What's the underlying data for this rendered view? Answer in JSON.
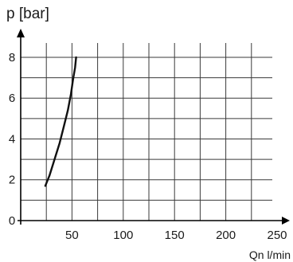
{
  "chart_data": {
    "type": "line",
    "title": "",
    "xlabel": "Qn l/min",
    "ylabel": "p [bar]",
    "xlim": [
      0,
      250
    ],
    "ylim": [
      0,
      8.7
    ],
    "x_ticks": [
      "50",
      "100",
      "150",
      "200",
      "250"
    ],
    "x_tick_values": [
      50,
      100,
      150,
      200,
      250
    ],
    "y_ticks": [
      "0",
      "2",
      "4",
      "6",
      "8"
    ],
    "y_tick_values": [
      0,
      2,
      4,
      6,
      8
    ],
    "grid": true,
    "legend": "none",
    "series": [
      {
        "x": [
          24,
          28,
          33,
          38,
          42,
          46,
          49,
          51,
          53,
          54
        ],
        "y": [
          1.7,
          2.2,
          3.0,
          3.8,
          4.6,
          5.4,
          6.2,
          6.9,
          7.5,
          8.0
        ]
      }
    ]
  },
  "colors": {
    "line": "#111111",
    "grid": "#3a3a3a",
    "axis": "#000000"
  }
}
